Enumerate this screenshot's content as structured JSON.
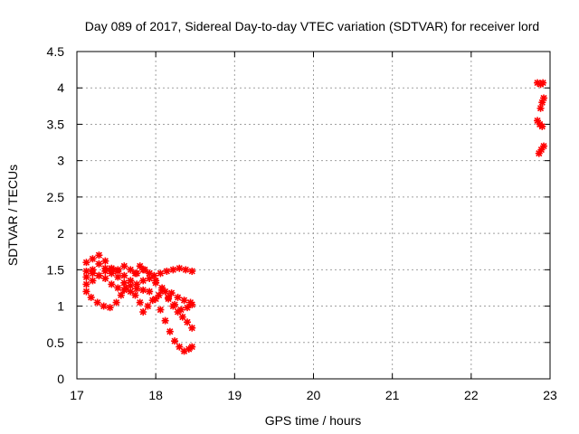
{
  "chart_data": {
    "type": "scatter",
    "title": "Day 089 of 2017, Sidereal Day-to-day VTEC variation (SDTVAR) for receiver lord",
    "xlabel": "GPS time / hours",
    "ylabel": "SDTVAR / TECUs",
    "xlim": [
      17,
      23
    ],
    "ylim": [
      0,
      4.5
    ],
    "xticks": [
      "17",
      "18",
      "19",
      "20",
      "21",
      "22",
      "23"
    ],
    "yticks": [
      "0",
      "0.5",
      "1",
      "1.5",
      "2",
      "2.5",
      "3",
      "3.5",
      "4",
      "4.5"
    ],
    "grid": true,
    "marker": "star",
    "color": "#ff0000",
    "series": [
      {
        "points": [
          [
            17.12,
            1.6
          ],
          [
            17.2,
            1.65
          ],
          [
            17.28,
            1.7
          ],
          [
            17.36,
            1.62
          ],
          [
            17.44,
            1.5
          ],
          [
            17.52,
            1.4
          ],
          [
            17.6,
            1.32
          ],
          [
            17.68,
            1.28
          ],
          [
            17.76,
            1.24
          ],
          [
            17.84,
            1.22
          ],
          [
            17.92,
            1.2
          ],
          [
            18.0,
            1.1
          ],
          [
            18.06,
            0.95
          ],
          [
            18.12,
            0.8
          ],
          [
            18.18,
            0.65
          ],
          [
            18.24,
            0.52
          ],
          [
            18.3,
            0.44
          ],
          [
            18.36,
            0.38
          ],
          [
            18.42,
            0.41
          ],
          [
            18.46,
            0.44
          ]
        ]
      },
      {
        "points": [
          [
            17.12,
            1.4
          ],
          [
            17.2,
            1.5
          ],
          [
            17.28,
            1.58
          ],
          [
            17.36,
            1.52
          ],
          [
            17.44,
            1.45
          ],
          [
            17.52,
            1.5
          ],
          [
            17.6,
            1.55
          ],
          [
            17.68,
            1.5
          ],
          [
            17.76,
            1.45
          ],
          [
            17.84,
            1.5
          ],
          [
            17.92,
            1.45
          ],
          [
            18.0,
            1.35
          ],
          [
            18.08,
            1.25
          ],
          [
            18.16,
            1.1
          ],
          [
            18.22,
            1.0
          ],
          [
            18.28,
            0.92
          ],
          [
            18.34,
            0.85
          ],
          [
            18.4,
            0.78
          ],
          [
            18.46,
            0.7
          ]
        ]
      },
      {
        "points": [
          [
            17.12,
            1.2
          ],
          [
            17.18,
            1.12
          ],
          [
            17.26,
            1.05
          ],
          [
            17.34,
            1.0
          ],
          [
            17.42,
            0.98
          ],
          [
            17.5,
            1.05
          ],
          [
            17.56,
            1.15
          ],
          [
            17.62,
            1.25
          ],
          [
            17.68,
            1.35
          ],
          [
            17.74,
            1.45
          ],
          [
            17.8,
            1.55
          ],
          [
            17.86,
            1.5
          ],
          [
            17.92,
            1.45
          ],
          [
            17.98,
            1.42
          ],
          [
            18.06,
            1.45
          ],
          [
            18.14,
            1.48
          ],
          [
            18.22,
            1.5
          ],
          [
            18.3,
            1.52
          ],
          [
            18.38,
            1.5
          ],
          [
            18.46,
            1.48
          ]
        ]
      },
      {
        "points": [
          [
            17.12,
            1.48
          ],
          [
            17.2,
            1.45
          ],
          [
            17.28,
            1.42
          ],
          [
            17.36,
            1.38
          ],
          [
            17.44,
            1.3
          ],
          [
            17.52,
            1.25
          ],
          [
            17.6,
            1.22
          ],
          [
            17.68,
            1.2
          ],
          [
            17.74,
            1.15
          ],
          [
            17.8,
            1.05
          ],
          [
            17.84,
            0.92
          ],
          [
            17.9,
            1.0
          ],
          [
            17.96,
            1.08
          ],
          [
            18.04,
            1.15
          ],
          [
            18.12,
            1.2
          ],
          [
            18.2,
            1.18
          ],
          [
            18.28,
            1.12
          ],
          [
            18.36,
            1.08
          ],
          [
            18.44,
            1.05
          ]
        ]
      },
      {
        "points": [
          [
            17.12,
            1.3
          ],
          [
            17.2,
            1.35
          ],
          [
            17.28,
            1.42
          ],
          [
            17.36,
            1.48
          ],
          [
            17.44,
            1.52
          ],
          [
            17.52,
            1.48
          ],
          [
            17.6,
            1.42
          ],
          [
            17.68,
            1.35
          ],
          [
            17.76,
            1.3
          ],
          [
            17.84,
            1.35
          ],
          [
            17.92,
            1.38
          ],
          [
            18.0,
            1.32
          ],
          [
            18.08,
            1.22
          ],
          [
            18.16,
            1.12
          ],
          [
            18.24,
            1.02
          ],
          [
            18.32,
            0.95
          ],
          [
            18.4,
            0.98
          ],
          [
            18.46,
            1.02
          ]
        ]
      },
      {
        "points": [
          [
            22.84,
            4.07
          ],
          [
            22.88,
            4.05
          ],
          [
            22.91,
            4.07
          ]
        ]
      },
      {
        "points": [
          [
            22.88,
            3.72
          ],
          [
            22.9,
            3.8
          ],
          [
            22.92,
            3.86
          ]
        ]
      },
      {
        "points": [
          [
            22.84,
            3.55
          ],
          [
            22.87,
            3.5
          ],
          [
            22.9,
            3.47
          ]
        ]
      },
      {
        "points": [
          [
            22.86,
            3.1
          ],
          [
            22.89,
            3.15
          ],
          [
            22.92,
            3.2
          ]
        ]
      }
    ]
  }
}
